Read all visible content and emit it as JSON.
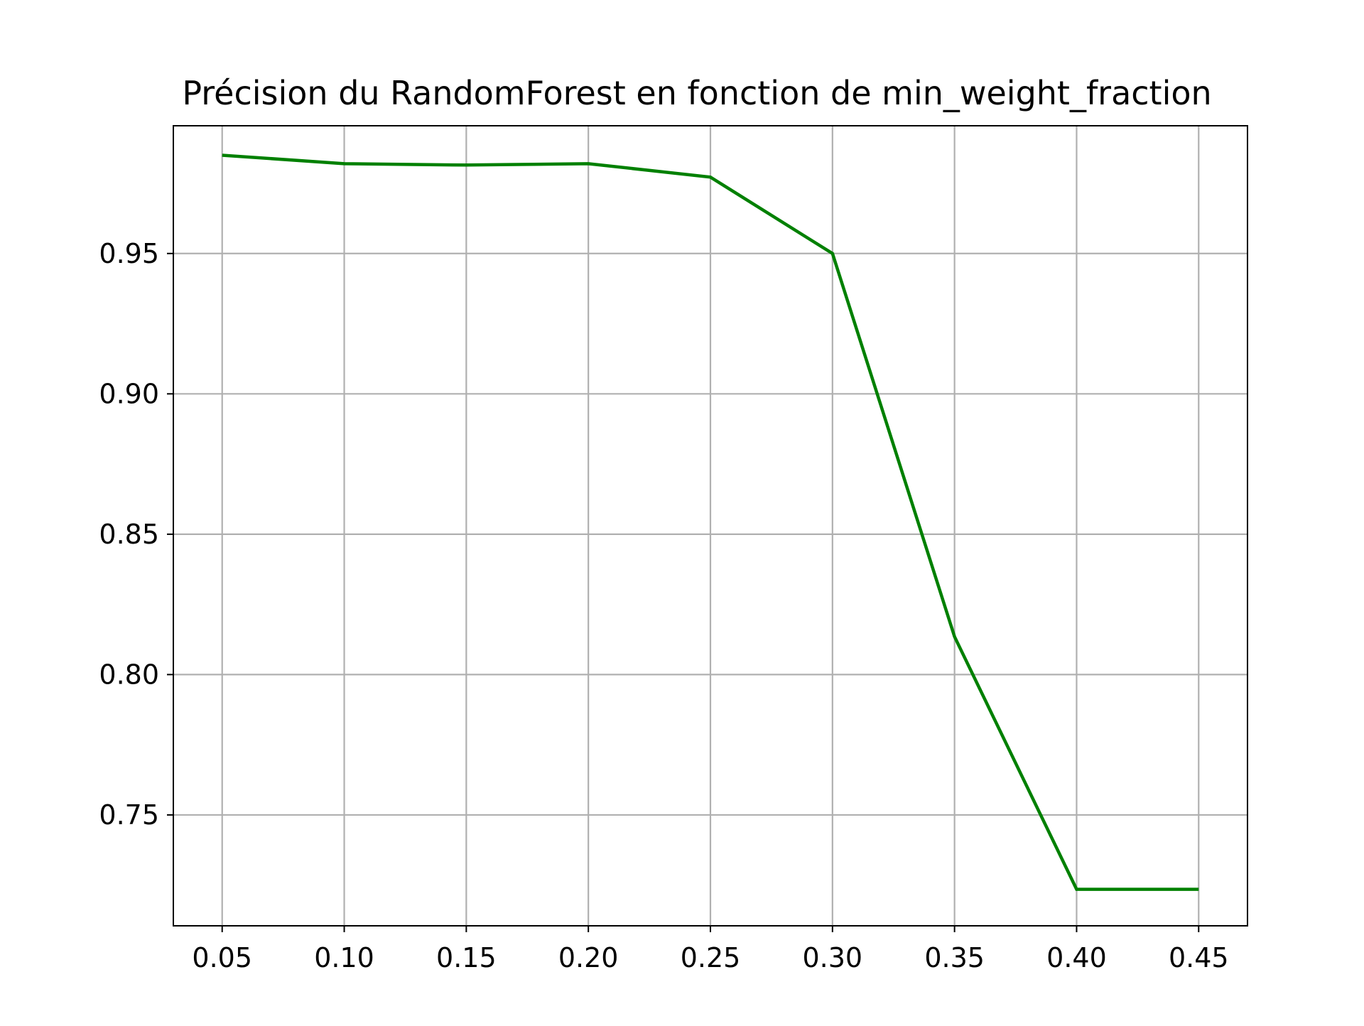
{
  "chart_data": {
    "type": "line",
    "title": "Précision du RandomForest en fonction de min_weight_fraction",
    "xlabel": "",
    "ylabel": "",
    "xlim": [
      0.03,
      0.47
    ],
    "ylim": [
      0.7105,
      0.9955
    ],
    "x_ticks": [
      0.05,
      0.1,
      0.15,
      0.2,
      0.25,
      0.3,
      0.35,
      0.4,
      0.45
    ],
    "x_tick_labels": [
      "0.05",
      "0.10",
      "0.15",
      "0.20",
      "0.25",
      "0.30",
      "0.35",
      "0.40",
      "0.45"
    ],
    "y_ticks": [
      0.75,
      0.8,
      0.85,
      0.9,
      0.95
    ],
    "y_tick_labels": [
      "0.75",
      "0.80",
      "0.85",
      "0.90",
      "0.95"
    ],
    "grid": true,
    "legend": "none",
    "series": [
      {
        "color": "#008000",
        "x": [
          0.05,
          0.1,
          0.15,
          0.2,
          0.25,
          0.3,
          0.35,
          0.4,
          0.45
        ],
        "y": [
          0.985,
          0.982,
          0.9815,
          0.982,
          0.9772,
          0.95,
          0.8135,
          0.7235,
          0.7235
        ]
      }
    ]
  }
}
